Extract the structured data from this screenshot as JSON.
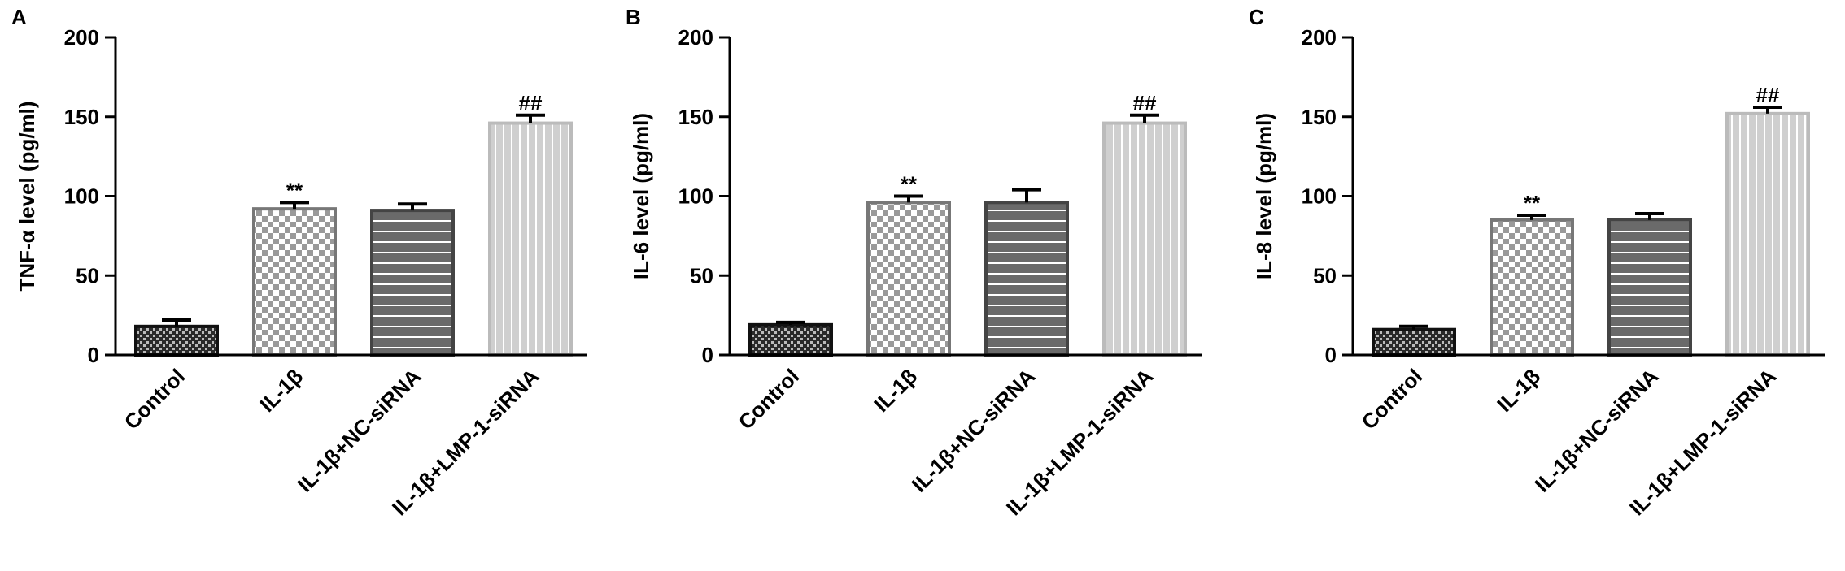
{
  "chart_data": [
    {
      "type": "bar",
      "panel_label": "A",
      "ylabel": "TNF-α level (pg/ml)",
      "categories": [
        "Control",
        "IL-1β",
        "IL-1β+NC-siRNA",
        "IL-1β+LMP-1-siRNA"
      ],
      "values": [
        18,
        92,
        91,
        146
      ],
      "errors": [
        4,
        4,
        4,
        5
      ],
      "bar_labels": [
        null,
        "**",
        null,
        "##"
      ],
      "ylim": [
        0,
        200
      ],
      "yticks": [
        0,
        50,
        100,
        150,
        200
      ]
    },
    {
      "type": "bar",
      "panel_label": "B",
      "ylabel": "IL-6 level (pg/ml)",
      "categories": [
        "Control",
        "IL-1β",
        "IL-1β+NC-siRNA",
        "IL-1β+LMP-1-siRNA"
      ],
      "values": [
        19,
        96,
        96,
        146
      ],
      "errors": [
        1.5,
        4,
        8,
        5
      ],
      "bar_labels": [
        null,
        "**",
        null,
        "##"
      ],
      "ylim": [
        0,
        200
      ],
      "yticks": [
        0,
        50,
        100,
        150,
        200
      ]
    },
    {
      "type": "bar",
      "panel_label": "C",
      "ylabel": "IL-8 level (pg/ml)",
      "categories": [
        "Control",
        "IL-1β",
        "IL-1β+NC-siRNA",
        "IL-1β+LMP-1-siRNA"
      ],
      "values": [
        16,
        85,
        85,
        152
      ],
      "errors": [
        2,
        3,
        4,
        4
      ],
      "bar_labels": [
        null,
        "**",
        null,
        "##"
      ],
      "ylim": [
        0,
        200
      ],
      "yticks": [
        0,
        50,
        100,
        150,
        200
      ]
    }
  ]
}
